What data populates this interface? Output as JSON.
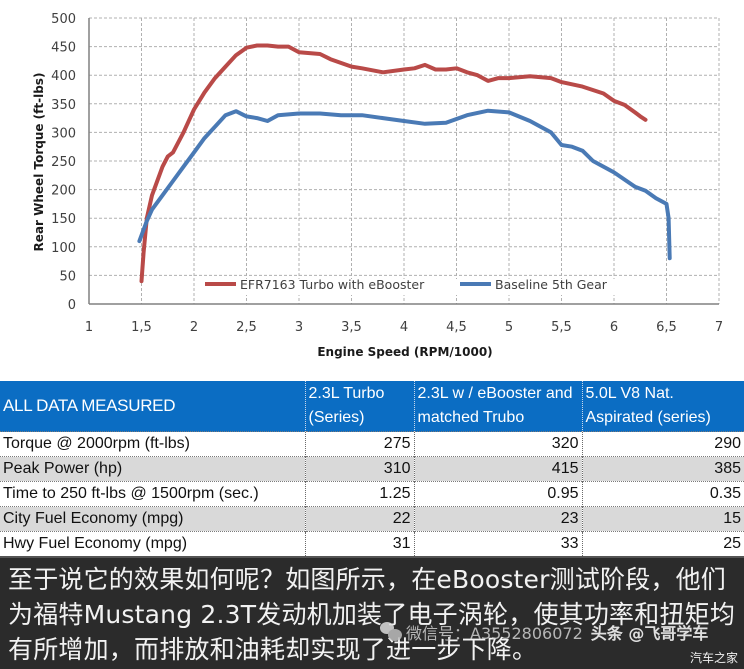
{
  "chart_data": {
    "type": "line",
    "title": "",
    "xlabel": "Engine Speed (RPM/1000)",
    "ylabel": "Rear Wheel Torque (ft-lbs)",
    "xlim": [
      1,
      7
    ],
    "ylim": [
      0,
      500
    ],
    "x_ticks": [
      "1",
      "1,5",
      "2",
      "2,5",
      "3",
      "3,5",
      "4",
      "4,5",
      "5",
      "5,5",
      "6",
      "6,5",
      "7"
    ],
    "y_ticks": [
      "0",
      "50",
      "100",
      "150",
      "200",
      "250",
      "300",
      "350",
      "400",
      "450",
      "500"
    ],
    "grid": true,
    "legend_position": "bottom-inside",
    "series": [
      {
        "name": "EFR7163 Turbo with eBooster",
        "color": "#b94a48",
        "x": [
          1.5,
          1.52,
          1.55,
          1.6,
          1.7,
          1.75,
          1.8,
          1.9,
          2.0,
          2.1,
          2.2,
          2.3,
          2.4,
          2.5,
          2.6,
          2.7,
          2.8,
          2.9,
          3.0,
          3.2,
          3.3,
          3.5,
          3.6,
          3.8,
          4.0,
          4.1,
          4.2,
          4.3,
          4.4,
          4.5,
          4.6,
          4.7,
          4.8,
          4.9,
          5.0,
          5.2,
          5.4,
          5.5,
          5.7,
          5.9,
          6.0,
          6.1,
          6.2,
          6.25,
          6.3
        ],
        "values": [
          40,
          90,
          150,
          190,
          240,
          258,
          265,
          300,
          340,
          370,
          395,
          415,
          435,
          448,
          452,
          452,
          450,
          450,
          440,
          437,
          428,
          415,
          412,
          405,
          410,
          412,
          418,
          410,
          410,
          412,
          405,
          400,
          390,
          395,
          395,
          398,
          395,
          388,
          380,
          368,
          355,
          348,
          335,
          328,
          322
        ]
      },
      {
        "name": "Baseline 5th Gear",
        "color": "#4a7ab5",
        "x": [
          1.48,
          1.55,
          1.6,
          1.7,
          1.8,
          1.9,
          2.0,
          2.1,
          2.2,
          2.3,
          2.4,
          2.5,
          2.6,
          2.7,
          2.8,
          3.0,
          3.2,
          3.4,
          3.6,
          3.8,
          4.0,
          4.2,
          4.4,
          4.6,
          4.8,
          5.0,
          5.2,
          5.4,
          5.5,
          5.6,
          5.7,
          5.8,
          6.0,
          6.2,
          6.3,
          6.4,
          6.5,
          6.52,
          6.53
        ],
        "values": [
          110,
          145,
          165,
          190,
          215,
          240,
          265,
          290,
          310,
          330,
          337,
          328,
          325,
          320,
          330,
          333,
          333,
          330,
          330,
          325,
          320,
          315,
          317,
          330,
          338,
          335,
          320,
          300,
          278,
          275,
          268,
          250,
          230,
          205,
          198,
          185,
          175,
          150,
          80
        ]
      }
    ]
  },
  "table": {
    "headers": [
      {
        "line1": "ALL DATA MEASURED",
        "line2": ""
      },
      {
        "line1": "2.3L Turbo",
        "line2": "(Series)"
      },
      {
        "line1": "2.3L w / eBooster and",
        "line2": "matched Trubo"
      },
      {
        "line1": "5.0L V8 Nat.",
        "line2": "Aspirated (series)"
      }
    ],
    "rows": [
      {
        "label": "Torque @ 2000rpm (ft-lbs)",
        "c1": "275",
        "c2": "320",
        "c3": "290"
      },
      {
        "label": "Peak Power (hp)",
        "c1": "310",
        "c2": "415",
        "c3": "385"
      },
      {
        "label": "Time to 250 ft-lbs @ 1500rpm (sec.)",
        "c1": "1.25",
        "c2": "0.95",
        "c3": "0.35"
      },
      {
        "label": "City Fuel Economy (mpg)",
        "c1": "22",
        "c2": "23",
        "c3": "15"
      },
      {
        "label": "Hwy Fuel Economy (mpg)",
        "c1": "31",
        "c2": "33",
        "c3": "25"
      }
    ]
  },
  "caption": {
    "text": "至于说它的效果如何呢？如图所示，在eBooster测试阶段，他们为福特Mustang 2.3T发动机加装了电子涡轮，使其功率和扭矩均有所增加，而排放和油耗却实现了进一步下降。",
    "watermark_wechat": "微信号：A3552806072",
    "watermark_toutiao": "头条 @飞哥学车",
    "site_mark": "汽车之家"
  },
  "colors": {
    "header_blue": "#0b6dc3",
    "row_shade": "#d9d9d9",
    "caption_bg": "#2b2b2b"
  }
}
